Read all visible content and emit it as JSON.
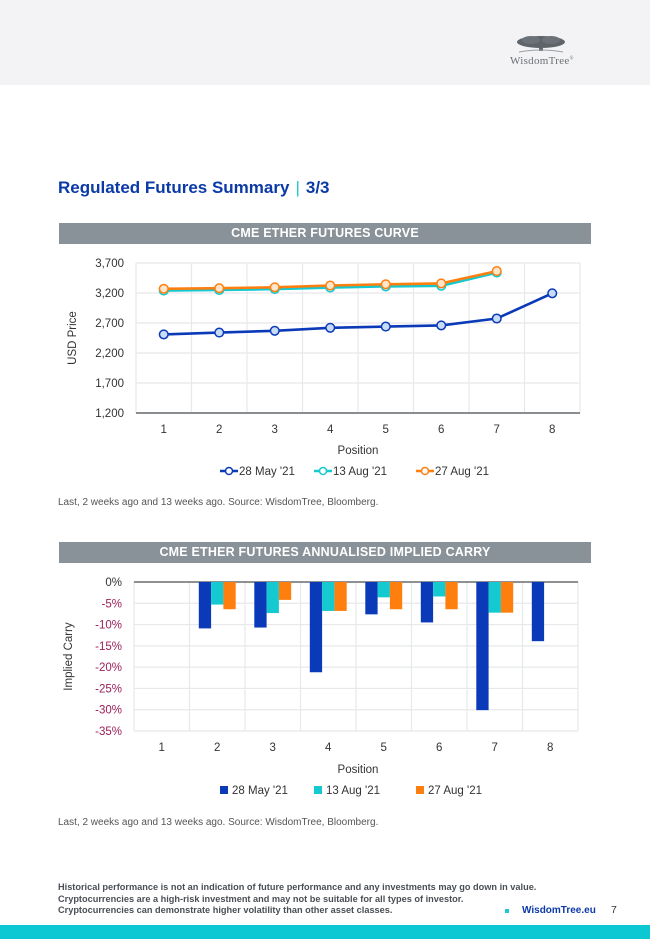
{
  "header": {
    "logo_text": "WisdomTree",
    "logo_mark": "®"
  },
  "page": {
    "title": "Regulated Futures Summary",
    "separator": "|",
    "page_indicator": "3/3"
  },
  "colors": {
    "series_may": "#0b3ab8",
    "series_aug13": "#14c9d0",
    "series_aug27": "#ff7f0e",
    "banner": "#8a9299",
    "title": "#0b3aa8",
    "negative_tick": "#9a1f5a",
    "accent": "#0bc8d2"
  },
  "chart_data": [
    {
      "type": "line",
      "title": "CME ETHER FUTURES CURVE",
      "xlabel": "Position",
      "ylabel": "USD Price",
      "categories": [
        "1",
        "2",
        "3",
        "4",
        "5",
        "6",
        "7",
        "8"
      ],
      "ylim": [
        1200,
        3700
      ],
      "yticks": [
        1200,
        1700,
        2200,
        2700,
        3200,
        3700
      ],
      "ytick_labels": [
        "1,200",
        "1,700",
        "2,200",
        "2,700",
        "3,200",
        "3,700"
      ],
      "grid": true,
      "legend_position": "bottom",
      "series": [
        {
          "name": "28 May '21",
          "values": [
            2510,
            2540,
            2570,
            2620,
            2640,
            2660,
            2775,
            3195
          ]
        },
        {
          "name": "13 Aug '21",
          "values": [
            3240,
            3250,
            3265,
            3290,
            3310,
            3320,
            3540,
            null
          ]
        },
        {
          "name": "27 Aug '21",
          "values": [
            3270,
            3280,
            3295,
            3325,
            3345,
            3360,
            3565,
            null
          ]
        }
      ]
    },
    {
      "type": "bar",
      "title": "CME ETHER FUTURES ANNUALISED IMPLIED CARRY",
      "xlabel": "Position",
      "ylabel": "Implied Carry",
      "categories": [
        "1",
        "2",
        "3",
        "4",
        "5",
        "6",
        "7",
        "8"
      ],
      "ylim": [
        -35,
        0
      ],
      "yticks": [
        0,
        -5,
        -10,
        -15,
        -20,
        -25,
        -30,
        -35
      ],
      "ytick_labels": [
        "0%",
        "-5%",
        "-10%",
        "-15%",
        "-20%",
        "-25%",
        "-30%",
        "-35%"
      ],
      "grid": true,
      "legend_position": "bottom",
      "series": [
        {
          "name": "28 May '21",
          "values": [
            null,
            -10.9,
            -10.7,
            -21.2,
            -7.6,
            -9.5,
            -30.1,
            -13.9
          ]
        },
        {
          "name": "13 Aug '21",
          "values": [
            null,
            -5.3,
            -7.3,
            -6.8,
            -3.6,
            -3.4,
            -7.2,
            null
          ]
        },
        {
          "name": "27 Aug '21",
          "values": [
            null,
            -6.4,
            -4.2,
            -6.8,
            -6.4,
            -6.4,
            -7.2,
            null
          ]
        }
      ]
    }
  ],
  "captions": {
    "chart1": "Last, 2 weeks ago and 13 weeks ago. Source: WisdomTree, Bloomberg.",
    "chart2": "Last, 2 weeks ago and 13 weeks ago. Source: WisdomTree, Bloomberg."
  },
  "footer": {
    "disclaimer_lines": [
      "Historical performance is not an indication of future performance and any investments may go down in value.",
      "Cryptocurrencies are a high-risk investment and may not be suitable for all types of investor.",
      "Cryptocurrencies can demonstrate higher volatility than other asset classes."
    ],
    "website": "WisdomTree.eu",
    "page_number": "7"
  }
}
